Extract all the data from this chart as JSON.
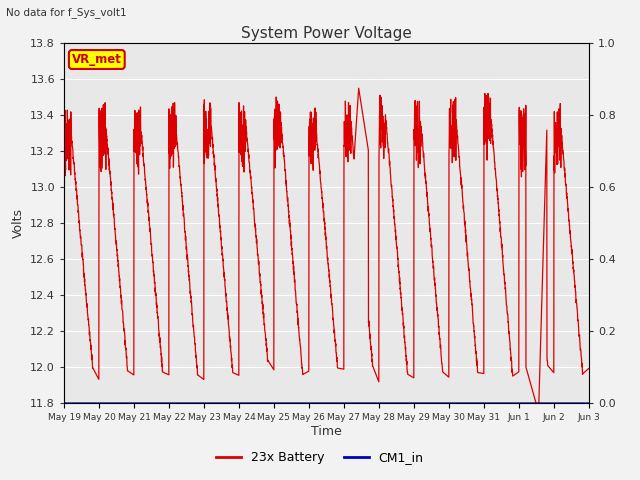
{
  "title": "System Power Voltage",
  "subtitle": "No data for f_Sys_volt1",
  "xlabel": "Time",
  "ylabel": "Volts",
  "ylim": [
    11.8,
    13.8
  ],
  "ylim2": [
    0.0,
    1.0
  ],
  "yticks": [
    11.8,
    12.0,
    12.2,
    12.4,
    12.6,
    12.8,
    13.0,
    13.2,
    13.4,
    13.6,
    13.8
  ],
  "yticks2": [
    0.0,
    0.2,
    0.4,
    0.6,
    0.8,
    1.0
  ],
  "xtick_labels": [
    "May 19",
    "May 20",
    "May 21",
    "May 22",
    "May 23",
    "May 24",
    "May 25",
    "May 26",
    "May 27",
    "May 28",
    "May 29",
    "May 30",
    "May 31",
    "Jun 1",
    "Jun 2",
    "Jun 3"
  ],
  "legend_entries": [
    "23x Battery",
    "CM1_in"
  ],
  "legend_colors": [
    "#dd0000",
    "#0000bb"
  ],
  "annotation_text": "VR_met",
  "annotation_color": "#cc0000",
  "annotation_bg": "#ffff00",
  "plot_bg_color": "#e8e8e8",
  "fig_bg_color": "#f2f2f2",
  "grid_color": "#ffffff",
  "line_color": "#dd0000",
  "cm1_color": "#0000bb",
  "num_cycles": 15
}
